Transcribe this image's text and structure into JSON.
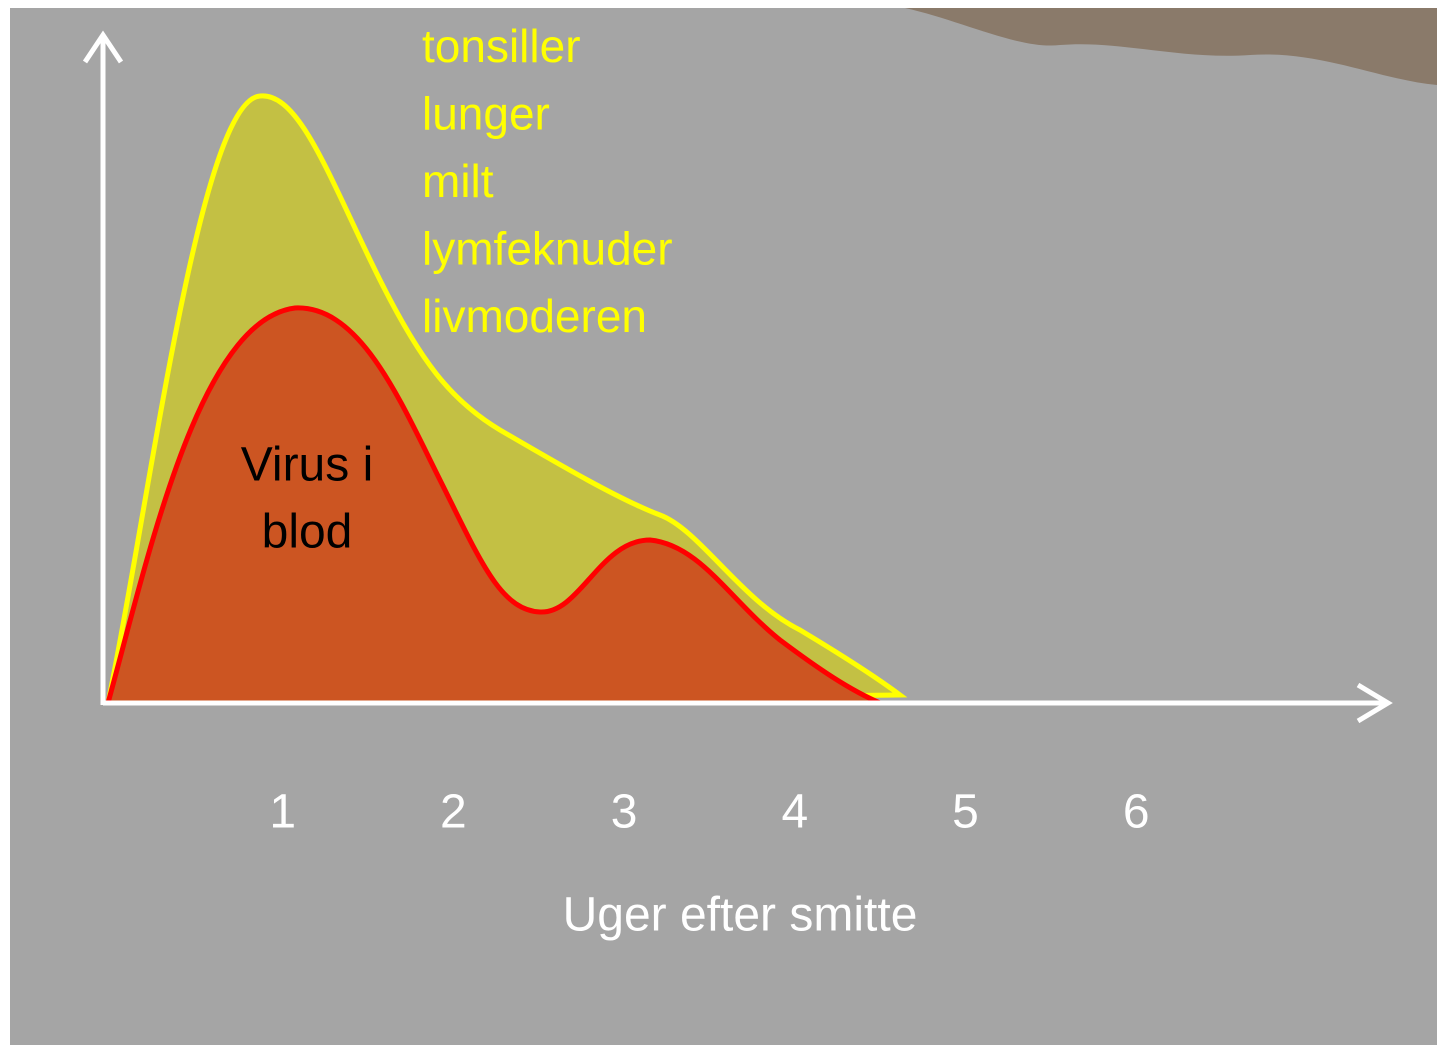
{
  "chart_data": {
    "type": "area",
    "organ_labels": [
      "tonsiller",
      "lunger",
      "milt",
      "lymfeknuder",
      "livmoderen"
    ],
    "annotation": [
      "Virus i",
      "blod"
    ],
    "xticks": [
      1,
      2,
      3,
      4,
      5,
      6
    ],
    "xlabel": "Uger efter smitte"
  }
}
